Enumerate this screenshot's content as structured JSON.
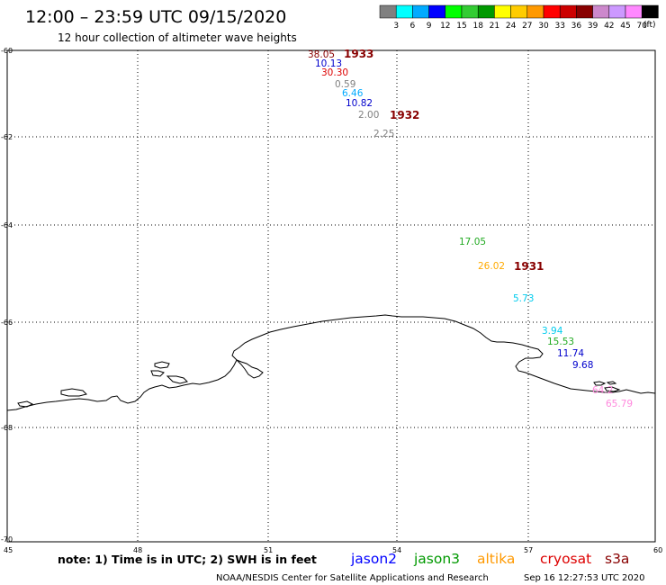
{
  "header": {
    "title": "12:00 – 23:59 UTC 09/15/2020",
    "subtitle": "12 hour collection of altimeter wave heights"
  },
  "legend": {
    "unit": "(ft)",
    "colors": [
      "#808080",
      "#00ffff",
      "#00aaff",
      "#0000ff",
      "#00ff00",
      "#33cc33",
      "#009900",
      "#ffff00",
      "#ffcc00",
      "#ff9900",
      "#ff0000",
      "#cc0000",
      "#880000",
      "#cc88cc",
      "#cc99ff",
      "#ff88ff",
      "#000000"
    ],
    "labels": [
      "3",
      "6",
      "9",
      "12",
      "15",
      "18",
      "21",
      "24",
      "27",
      "30",
      "33",
      "36",
      "39",
      "42",
      "45",
      "70"
    ]
  },
  "axes": {
    "lat_labels": [
      "-60",
      "-62",
      "-64",
      "-66",
      "-68",
      "-70"
    ],
    "lon_labels": [
      "45",
      "48",
      "51",
      "54",
      "57",
      "60"
    ]
  },
  "measurements": [
    {
      "text": "38.05",
      "color": "#880000"
    },
    {
      "text": "10.13",
      "color": "#0000cc"
    },
    {
      "text": "30.30",
      "color": "#dd0000"
    },
    {
      "text": "0.59",
      "color": "#808080"
    },
    {
      "text": "6.46",
      "color": "#00aaff"
    },
    {
      "text": "10.82",
      "color": "#0000cc"
    },
    {
      "text": "2.00",
      "color": "#808080"
    },
    {
      "text": "2.25",
      "color": "#808080"
    },
    {
      "text": "17.05",
      "color": "#22aa22"
    },
    {
      "text": "26.02",
      "color": "#ffaa00"
    },
    {
      "text": "5.73",
      "color": "#00ccee"
    },
    {
      "text": "3.94",
      "color": "#00ccee"
    },
    {
      "text": "15.53",
      "color": "#22aa22"
    },
    {
      "text": "11.74",
      "color": "#0000cc"
    },
    {
      "text": "9.68",
      "color": "#0000cc"
    },
    {
      "text": "64.2",
      "color": "#ff88dd"
    },
    {
      "text": "65.79",
      "color": "#ff88dd"
    }
  ],
  "time_labels": [
    {
      "text": "1933",
      "color": "#880000"
    },
    {
      "text": "1932",
      "color": "#880000"
    },
    {
      "text": "1931",
      "color": "#880000"
    }
  ],
  "footer": {
    "note": "note:  1) Time is in UTC; 2) SWH is in feet",
    "satellites": [
      {
        "name": "jason2",
        "color": "#0000ff"
      },
      {
        "name": "jason3",
        "color": "#009900"
      },
      {
        "name": "altika",
        "color": "#ff9900"
      },
      {
        "name": "cryosat",
        "color": "#dd0000"
      },
      {
        "name": "s3a",
        "color": "#880000"
      }
    ],
    "credit": "NOAA/NESDIS Center for Satellite Applications and Research",
    "timestamp": "Sep 16 12:27:53 UTC 2020"
  }
}
